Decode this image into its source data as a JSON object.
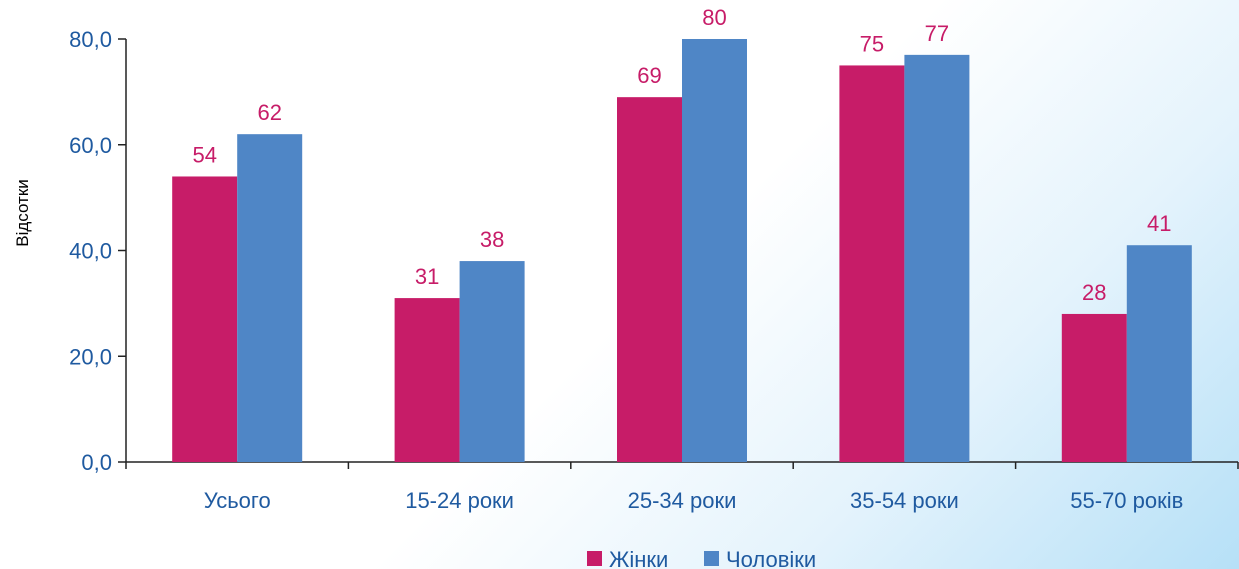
{
  "chart_data": {
    "type": "bar",
    "title": "",
    "xlabel": "",
    "ylabel": "Відсотки",
    "ylim": [
      0,
      80
    ],
    "yticks": [
      0,
      20,
      40,
      60,
      80
    ],
    "ytick_labels": [
      "0,0",
      "20,0",
      "40,0",
      "60,0",
      "80,0"
    ],
    "categories": [
      "Усього",
      "15-24 роки",
      "25-34 роки",
      "35-54 роки",
      "55-70 років"
    ],
    "series": [
      {
        "name": "Жінки",
        "values": [
          54,
          31,
          69,
          75,
          28
        ],
        "color": "#c71c68"
      },
      {
        "name": "Чоловіки",
        "values": [
          62,
          38,
          80,
          77,
          41
        ],
        "color": "#4f86c6"
      }
    ],
    "legend_position": "bottom-center",
    "grid": false,
    "value_label_color": "#c71c68",
    "axis_color": "#1f5aa0",
    "axis_line_color": "#222222"
  }
}
